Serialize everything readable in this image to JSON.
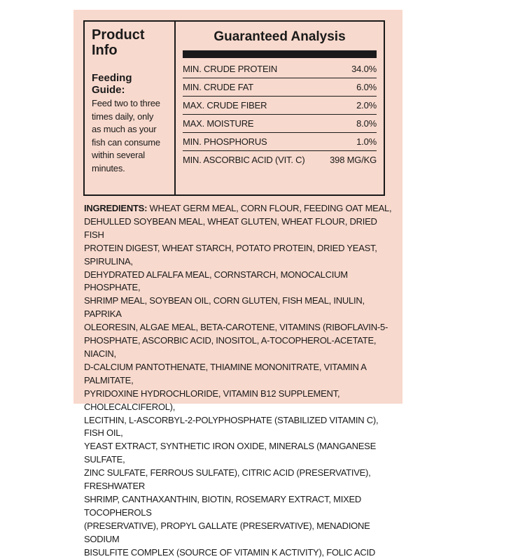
{
  "product_info": {
    "title_line1": "Product",
    "title_line2": "Info",
    "feeding_heading_line1": "Feeding",
    "feeding_heading_line2": "Guide:",
    "feeding_lines": [
      "Feed two to three",
      "times daily, only",
      "as much as your",
      "fish can consume",
      "within several",
      "minutes."
    ]
  },
  "analysis": {
    "title": "Guaranteed Analysis",
    "rows": [
      {
        "label": "MIN. CRUDE PROTEIN",
        "value": "34.0%"
      },
      {
        "label": "MIN. CRUDE FAT",
        "value": "6.0%"
      },
      {
        "label": "MAX. CRUDE FIBER",
        "value": "2.0%"
      },
      {
        "label": "MAX. MOISTURE",
        "value": "8.0%"
      },
      {
        "label": "MIN. PHOSPHORUS",
        "value": "1.0%"
      },
      {
        "label": "MIN. ASCORBIC ACID (VIT. C)",
        "value": "398 MG/KG"
      }
    ]
  },
  "ingredients": {
    "label": "INGREDIENTS:",
    "lines": [
      " WHEAT GERM MEAL, CORN FLOUR, FEEDING OAT MEAL,",
      "DEHULLED SOYBEAN MEAL, WHEAT GLUTEN, WHEAT FLOUR, DRIED FISH",
      "PROTEIN DIGEST, WHEAT STARCH, POTATO PROTEIN, DRIED YEAST, SPIRULINA,",
      "DEHYDRATED ALFALFA MEAL, CORNSTARCH, MONOCALCIUM PHOSPHATE,",
      "SHRIMP MEAL, SOYBEAN OIL, CORN GLUTEN, FISH MEAL, INULIN, PAPRIKA",
      "OLEORESIN, ALGAE MEAL, BETA-CAROTENE, VITAMINS (RIBOFLAVIN-5-",
      "PHOSPHATE, ASCORBIC ACID, INOSITOL, A-TOCOPHEROL-ACETATE, NIACIN,",
      "D-CALCIUM PANTOTHENATE, THIAMINE MONONITRATE, VITAMIN A PALMITATE,",
      "PYRIDOXINE HYDROCHLORIDE, VITAMIN B12 SUPPLEMENT, CHOLECALCIFEROL),",
      "LECITHIN, L-ASCORBYL-2-POLYPHOSPHATE (STABILIZED VITAMIN C), FISH OIL,",
      "YEAST EXTRACT, SYNTHETIC IRON OXIDE, MINERALS (MANGANESE SULFATE,",
      "ZINC SULFATE, FERROUS SULFATE), CITRIC ACID (PRESERVATIVE), FRESHWATER",
      "SHRIMP, CANTHAXANTHIN, BIOTIN, ROSEMARY EXTRACT, MIXED TOCOPHEROLS",
      "(PRESERVATIVE), PROPYL GALLATE (PRESERVATIVE), MENADIONE SODIUM",
      "BISULFITE COMPLEX (SOURCE OF VITAMIN K ACTIVITY), FOLIC ACID"
    ]
  },
  "colors": {
    "panel_background": "#f8d9cd",
    "ink": "#1a1a1a"
  }
}
